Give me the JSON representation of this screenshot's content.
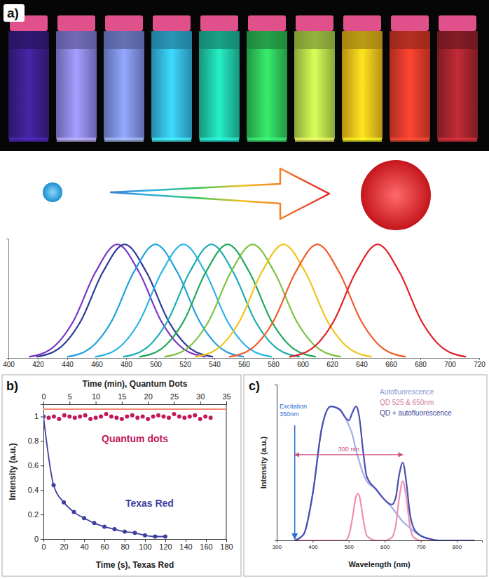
{
  "chart_data": [
    {
      "type": "line",
      "title": "a)",
      "xlim": [
        400,
        720
      ],
      "xticks": [
        400,
        420,
        440,
        460,
        480,
        500,
        520,
        540,
        560,
        580,
        600,
        620,
        640,
        660,
        680,
        700,
        720
      ],
      "ylim": [
        0,
        1.05
      ],
      "tick_labels": "x",
      "series": [
        {
          "color": "#7a35c8",
          "x": [
            414,
            429,
            444,
            459,
            474,
            489,
            504,
            519,
            534
          ],
          "values": [
            0.01,
            0.08,
            0.32,
            0.75,
            1,
            0.75,
            0.32,
            0.08,
            0.01
          ]
        },
        {
          "color": "#2c3a96",
          "x": [
            419,
            434,
            449,
            464,
            479,
            494,
            509,
            524,
            539
          ],
          "values": [
            0.01,
            0.08,
            0.32,
            0.75,
            1,
            0.75,
            0.32,
            0.08,
            0.01
          ]
        },
        {
          "color": "#1fa0dc",
          "x": [
            440,
            455,
            470,
            485,
            500,
            515,
            530,
            545,
            560
          ],
          "values": [
            0.01,
            0.08,
            0.32,
            0.75,
            1,
            0.75,
            0.32,
            0.08,
            0.01
          ]
        },
        {
          "color": "#29b4e6",
          "x": [
            459,
            474,
            489,
            504,
            519,
            534,
            549,
            564,
            579
          ],
          "values": [
            0.01,
            0.08,
            0.32,
            0.75,
            1,
            0.75,
            0.32,
            0.08,
            0.01
          ]
        },
        {
          "color": "#1aaeb0",
          "x": [
            478,
            493,
            508,
            523,
            538,
            553,
            568,
            583,
            598
          ],
          "values": [
            0.01,
            0.08,
            0.32,
            0.75,
            1,
            0.75,
            0.32,
            0.08,
            0.01
          ]
        },
        {
          "color": "#1fa85a",
          "x": [
            489,
            504,
            519,
            534,
            549,
            564,
            579,
            594,
            609
          ],
          "values": [
            0.01,
            0.08,
            0.32,
            0.75,
            1,
            0.75,
            0.32,
            0.08,
            0.01
          ]
        },
        {
          "color": "#7dc242",
          "x": [
            506,
            521,
            536,
            551,
            566,
            581,
            596,
            611,
            626
          ],
          "values": [
            0.01,
            0.08,
            0.32,
            0.75,
            1,
            0.75,
            0.32,
            0.08,
            0.01
          ]
        },
        {
          "color": "#f0c419",
          "x": [
            527,
            542,
            557,
            572,
            587,
            602,
            617,
            632,
            647
          ],
          "values": [
            0.01,
            0.08,
            0.32,
            0.75,
            1,
            0.75,
            0.32,
            0.08,
            0.01
          ]
        },
        {
          "color": "#f15a29",
          "x": [
            550,
            565,
            580,
            595,
            610,
            625,
            640,
            655,
            670
          ],
          "values": [
            0.01,
            0.08,
            0.32,
            0.75,
            1,
            0.75,
            0.32,
            0.08,
            0.01
          ]
        },
        {
          "color": "#e31e26",
          "x": [
            591,
            606,
            621,
            636,
            651,
            666,
            681,
            696,
            711
          ],
          "values": [
            0.01,
            0.08,
            0.32,
            0.75,
            1,
            0.75,
            0.32,
            0.08,
            0.01
          ]
        }
      ]
    },
    {
      "type": "scatter",
      "title": "b)",
      "x_label": "Time (s), Texas Red",
      "x2_label": "Time (min), Quantum Dots",
      "y_label": "Intensity (a.u.)",
      "xlim": [
        0,
        180
      ],
      "xticks": [
        0,
        20,
        40,
        60,
        80,
        100,
        120,
        140,
        160,
        180
      ],
      "x2lim": [
        0,
        35
      ],
      "x2ticks": [
        0,
        5,
        10,
        15,
        20,
        25,
        30,
        35
      ],
      "ylim": [
        0,
        1.1
      ],
      "yticks": [
        0,
        0.2,
        0.4,
        0.6,
        0.8,
        1
      ],
      "series": [
        {
          "name": "Quantum dots",
          "type": "scatter",
          "marker": "circle",
          "axis": "x2",
          "color": "#c2185b",
          "x": [
            0,
            1,
            2,
            3,
            4,
            5,
            6,
            7,
            8,
            9,
            10,
            11,
            12,
            13,
            14,
            15,
            16,
            17,
            18,
            19,
            20,
            21,
            22,
            23,
            24,
            25,
            26,
            27,
            28,
            29,
            30,
            31,
            32
          ],
          "values": [
            1,
            0.99,
            1,
            0.98,
            1.01,
            1,
            0.99,
            1,
            1.01,
            0.98,
            0.99,
            1,
            1.02,
            1,
            0.99,
            0.98,
            1,
            1.01,
            0.99,
            1,
            0.98,
            1,
            1.01,
            1,
            0.99,
            1.02,
            1,
            0.99,
            1,
            1.01,
            0.98,
            1,
            0.99
          ]
        },
        {
          "type": "line",
          "axis": "x2",
          "color": "#f08a70",
          "x": [
            0,
            35
          ],
          "values": [
            1.06,
            1.06
          ]
        },
        {
          "name": "Texas Red",
          "type": "line",
          "marker": "circle",
          "color": "#3f3fa0",
          "x": [
            0,
            10,
            20,
            30,
            40,
            50,
            60,
            70,
            80,
            90,
            100,
            110,
            120
          ],
          "values": [
            1,
            0.44,
            0.3,
            0.22,
            0.17,
            0.13,
            0.1,
            0.08,
            0.06,
            0.05,
            0.03,
            0.02,
            0.02
          ]
        }
      ]
    },
    {
      "type": "line",
      "title": "c)",
      "x_label": "Wavelength (nm)",
      "y_label": "Intensity (a.u.)",
      "xlim": [
        300,
        870
      ],
      "xticks": [
        300,
        400,
        500,
        600,
        700,
        800
      ],
      "ylim": [
        0,
        1
      ],
      "tick_labels": "x",
      "legend": "top-right",
      "x": [
        350,
        375,
        400,
        425,
        450,
        475,
        490,
        500,
        510,
        520,
        525,
        530,
        540,
        550,
        575,
        600,
        620,
        630,
        640,
        650,
        660,
        670,
        680,
        700,
        725,
        750,
        800,
        850
      ],
      "series": [
        {
          "name": "Autofluorescence",
          "color": "#9fb0ea",
          "values": [
            0,
            0.04,
            0.3,
            0.72,
            0.86,
            0.84,
            0.79,
            0.74,
            0.68,
            0.58,
            0.54,
            0.5,
            0.43,
            0.38,
            0.33,
            0.26,
            0.21,
            0.18,
            0.15,
            0.12,
            0.1,
            0.08,
            0.06,
            0.03,
            0.01,
            0,
            0,
            0
          ]
        },
        {
          "name": "QD 525 & 650nm",
          "color": "#ef8fb2",
          "values": [
            0,
            0,
            0,
            0,
            0,
            0,
            0,
            0.03,
            0.14,
            0.28,
            0.3,
            0.28,
            0.14,
            0.03,
            0,
            0,
            0.02,
            0.09,
            0.27,
            0.38,
            0.27,
            0.09,
            0.02,
            0,
            0,
            0,
            0,
            0
          ]
        },
        {
          "name": "QD + autofluorescence",
          "color": "#4a4fb0",
          "values": [
            0,
            0.04,
            0.3,
            0.72,
            0.86,
            0.84,
            0.79,
            0.77,
            0.82,
            0.86,
            0.84,
            0.78,
            0.57,
            0.41,
            0.33,
            0.26,
            0.23,
            0.27,
            0.42,
            0.5,
            0.37,
            0.17,
            0.08,
            0.03,
            0.01,
            0,
            0,
            0
          ]
        }
      ],
      "annotations": [
        {
          "text": [
            "Excitation",
            "350nm"
          ],
          "x": 350
        },
        {
          "text": "300 nm",
          "x": [
            350,
            650
          ]
        }
      ]
    }
  ]
}
